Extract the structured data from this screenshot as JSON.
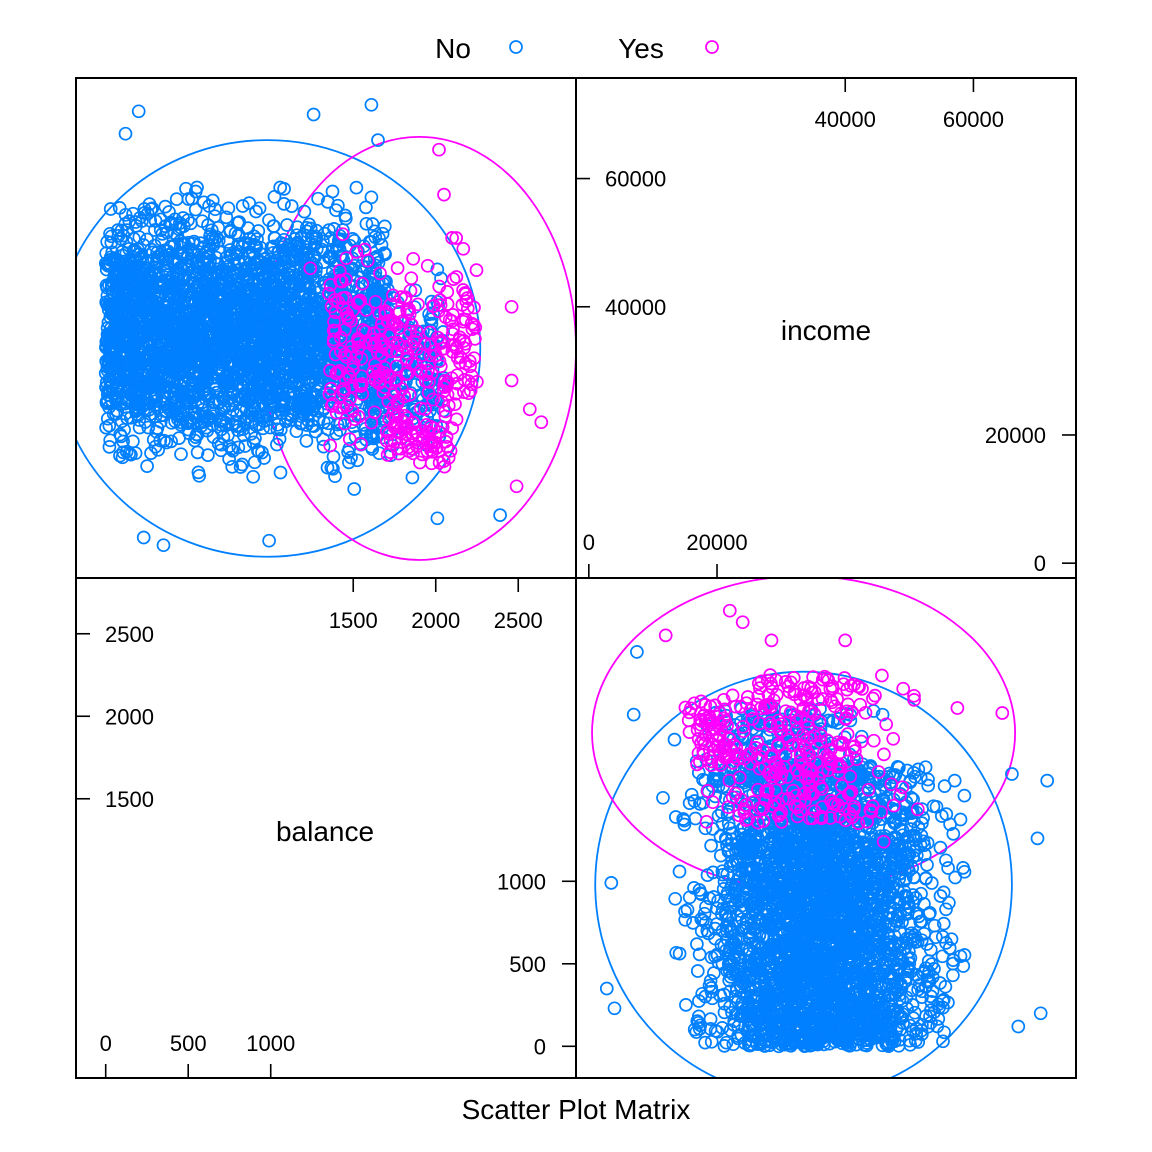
{
  "colors": {
    "No": "#0080ff",
    "Yes": "#ff00ff"
  },
  "legend": [
    {
      "label": "No",
      "color": "#0080ff"
    },
    {
      "label": "Yes",
      "color": "#ff00ff"
    }
  ],
  "chart_data": {
    "type": "scatter",
    "title": "Scatter Plot Matrix",
    "variables": [
      "income",
      "balance"
    ],
    "diagonal_labels": {
      "income": "income",
      "balance": "balance"
    },
    "panels": [
      {
        "position": "top-left",
        "x_variable": "balance",
        "y_variable": "income"
      },
      {
        "position": "bottom-right",
        "x_variable": "income",
        "y_variable": "balance"
      }
    ],
    "legend_placement": "top",
    "grid": false,
    "ranges": {
      "balance": [
        -180,
        2850
      ],
      "income": [
        -2000,
        76000
      ]
    },
    "ticks": {
      "income": {
        "lower_labels": [
          "0",
          "20000"
        ],
        "lower_values": [
          0,
          20000
        ],
        "upper_labels": [
          "40000",
          "60000"
        ],
        "upper_values": [
          40000,
          60000
        ]
      },
      "balance": {
        "lower_labels": [
          "0",
          "500",
          "1000"
        ],
        "lower_values": [
          0,
          500,
          1000
        ],
        "upper_labels": [
          "1500",
          "2000",
          "2500"
        ],
        "upper_values": [
          1500,
          2000,
          2500
        ]
      }
    },
    "series": [
      {
        "name": "No",
        "color": "#0080ff",
        "clusters": [
          {
            "balance_range": [
              0,
              1050
            ],
            "income_range": [
              10000,
              62000
            ],
            "count": 1500
          },
          {
            "balance_range": [
              0,
              1250
            ],
            "income_range": [
              12000,
              60000
            ],
            "count": 800
          },
          {
            "balance_range": [
              1050,
              1700
            ],
            "income_range": [
              10000,
              62000
            ],
            "count": 900
          },
          {
            "balance_range": [
              1600,
              2050
            ],
            "income_range": [
              12000,
              48000
            ],
            "count": 220
          }
        ],
        "outliers": [
          {
            "balance": 200,
            "income": 70500
          },
          {
            "balance": 1610,
            "income": 71500
          },
          {
            "balance": 1650,
            "income": 66000
          },
          {
            "balance": 2390,
            "income": 7500
          },
          {
            "balance": 230,
            "income": 4000
          },
          {
            "balance": 350,
            "income": 2800
          },
          {
            "balance": 990,
            "income": 3500
          },
          {
            "balance": 2010,
            "income": 7000
          },
          {
            "balance": 120,
            "income": 67000
          },
          {
            "balance": 1260,
            "income": 70000
          }
        ],
        "ellipse": {
          "center_balance": 980,
          "center_income": 33500,
          "half_width": 1290,
          "half_height": 32500
        }
      },
      {
        "name": "Yes",
        "color": "#ff00ff",
        "clusters": [
          {
            "balance_range": [
              1350,
              2250
            ],
            "income_range": [
              12000,
              55000
            ],
            "count": 300
          },
          {
            "balance_range": [
              1700,
              2100
            ],
            "income_range": [
              13000,
              25000
            ],
            "count": 60
          }
        ],
        "outliers": [
          {
            "balance": 2640,
            "income": 22000
          },
          {
            "balance": 2570,
            "income": 24000
          },
          {
            "balance": 2020,
            "income": 64500
          },
          {
            "balance": 2490,
            "income": 12000
          },
          {
            "balance": 2460,
            "income": 28500
          },
          {
            "balance": 1240,
            "income": 46000
          },
          {
            "balance": 2460,
            "income": 40000
          },
          {
            "balance": 2050,
            "income": 57500
          }
        ],
        "ellipse": {
          "center_balance": 1900,
          "center_income": 33500,
          "half_width": 950,
          "half_height": 33000
        }
      }
    ]
  }
}
